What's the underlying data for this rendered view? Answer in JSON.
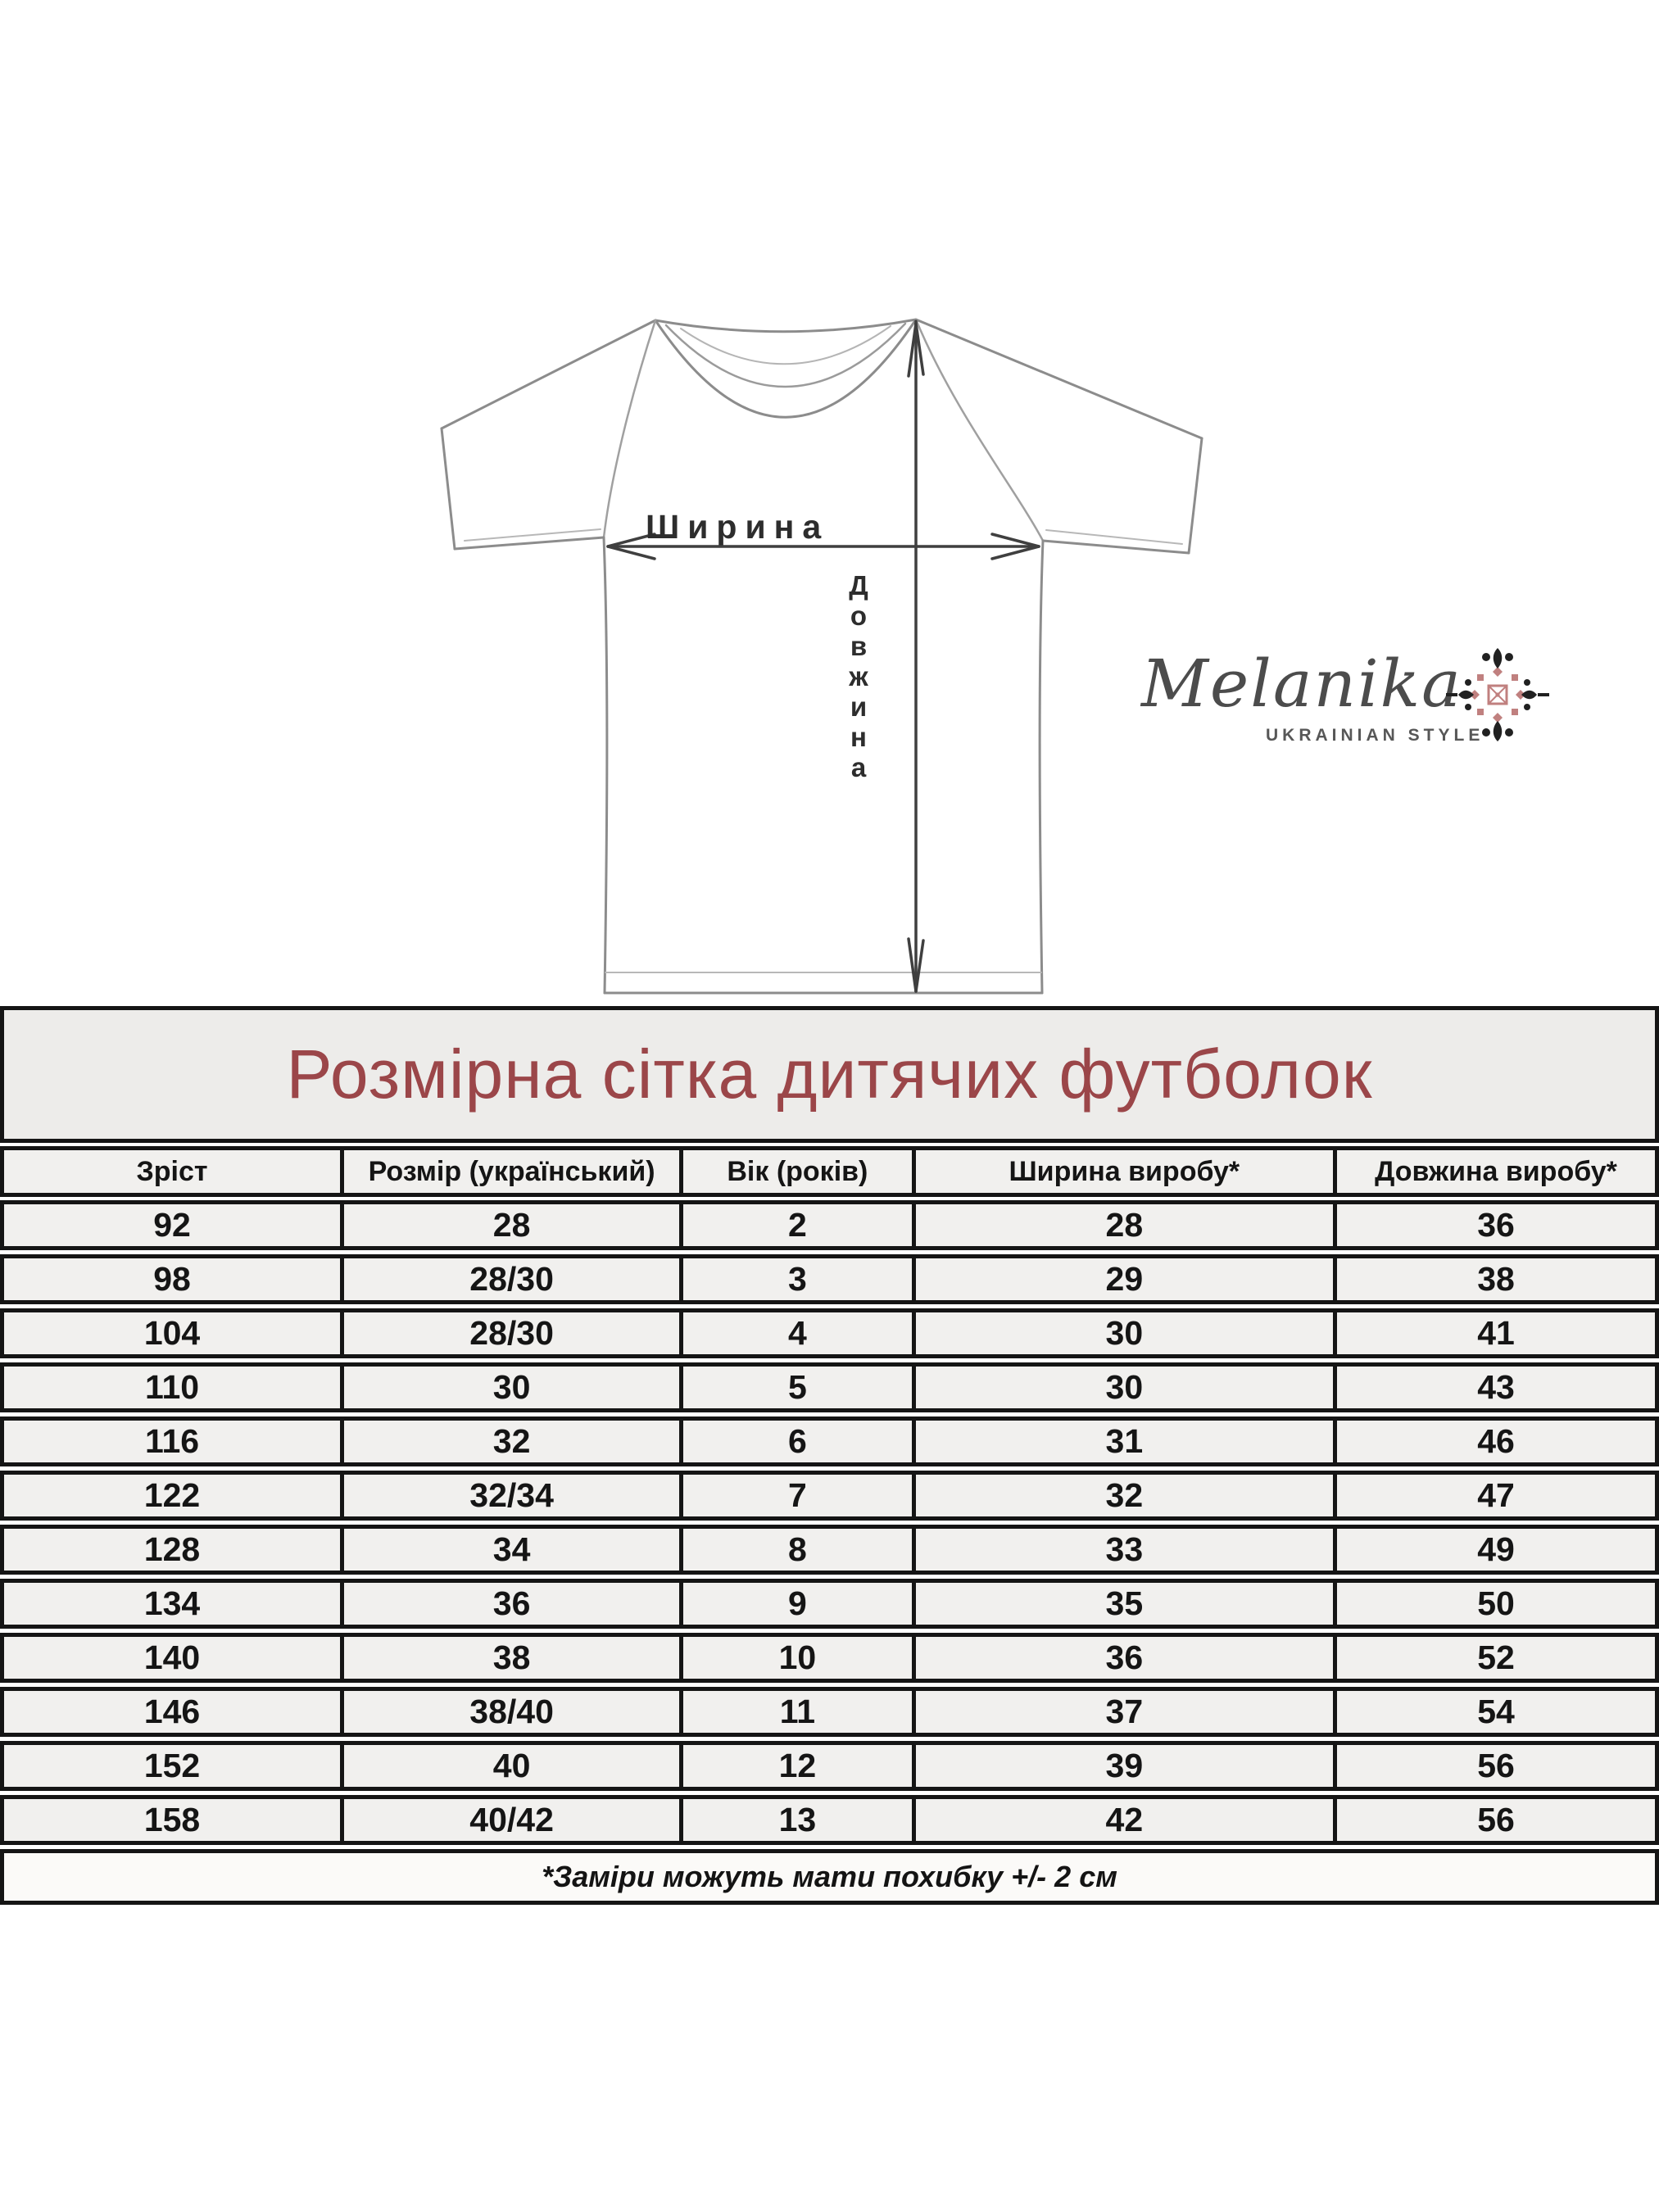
{
  "page": {
    "background": "#ffffff",
    "border_color": "#151515",
    "cell_background": "#f1f0ee"
  },
  "diagram": {
    "width_label": "Ширина",
    "length_label": "Довжина",
    "outline_color": "#8c8c8c",
    "measure_color": "#3f3f3f"
  },
  "logo": {
    "name": "Melanika",
    "tagline": "UKRAINIAN STYLE",
    "ornament_black": "#212121",
    "ornament_rose": "#c0807f"
  },
  "table": {
    "title": "Розмірна сітка дитячих футболок",
    "title_color": "#9b4649",
    "headers": [
      "Зріст",
      "Розмір (український)",
      "Вік (років)",
      "Ширина виробу*",
      "Довжина виробу*"
    ],
    "rows": [
      [
        "92",
        "28",
        "2",
        "28",
        "36"
      ],
      [
        "98",
        "28/30",
        "3",
        "29",
        "38"
      ],
      [
        "104",
        "28/30",
        "4",
        "30",
        "41"
      ],
      [
        "110",
        "30",
        "5",
        "30",
        "43"
      ],
      [
        "116",
        "32",
        "6",
        "31",
        "46"
      ],
      [
        "122",
        "32/34",
        "7",
        "32",
        "47"
      ],
      [
        "128",
        "34",
        "8",
        "33",
        "49"
      ],
      [
        "134",
        "36",
        "9",
        "35",
        "50"
      ],
      [
        "140",
        "38",
        "10",
        "36",
        "52"
      ],
      [
        "146",
        "38/40",
        "11",
        "37",
        "54"
      ],
      [
        "152",
        "40",
        "12",
        "39",
        "56"
      ],
      [
        "158",
        "40/42",
        "13",
        "42",
        "56"
      ]
    ],
    "footnote": "*Заміри можуть мати похибку +/- 2 см"
  }
}
